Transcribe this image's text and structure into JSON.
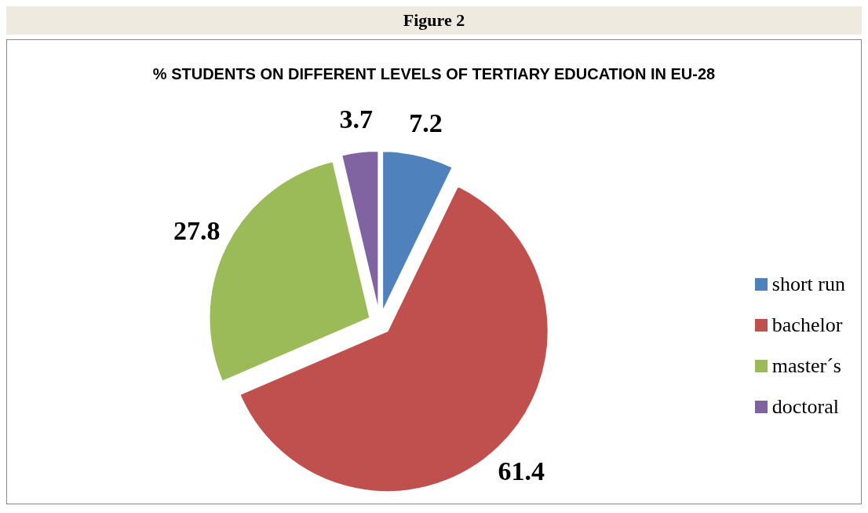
{
  "chart_data": {
    "type": "pie",
    "title": "% STUDENTS ON DIFFERENT LEVELS OF TERTIARY EDUCATION IN EU-28",
    "annotations": [
      "Figure 2"
    ],
    "categories": [
      "short run",
      "bachelor",
      "master´s",
      "doctoral"
    ],
    "values": [
      7.2,
      61.4,
      27.8,
      3.7
    ],
    "colors": [
      "#4f81bd",
      "#c0504d",
      "#9bbb59",
      "#8064a2"
    ],
    "data_labels": true,
    "legend": "right"
  }
}
